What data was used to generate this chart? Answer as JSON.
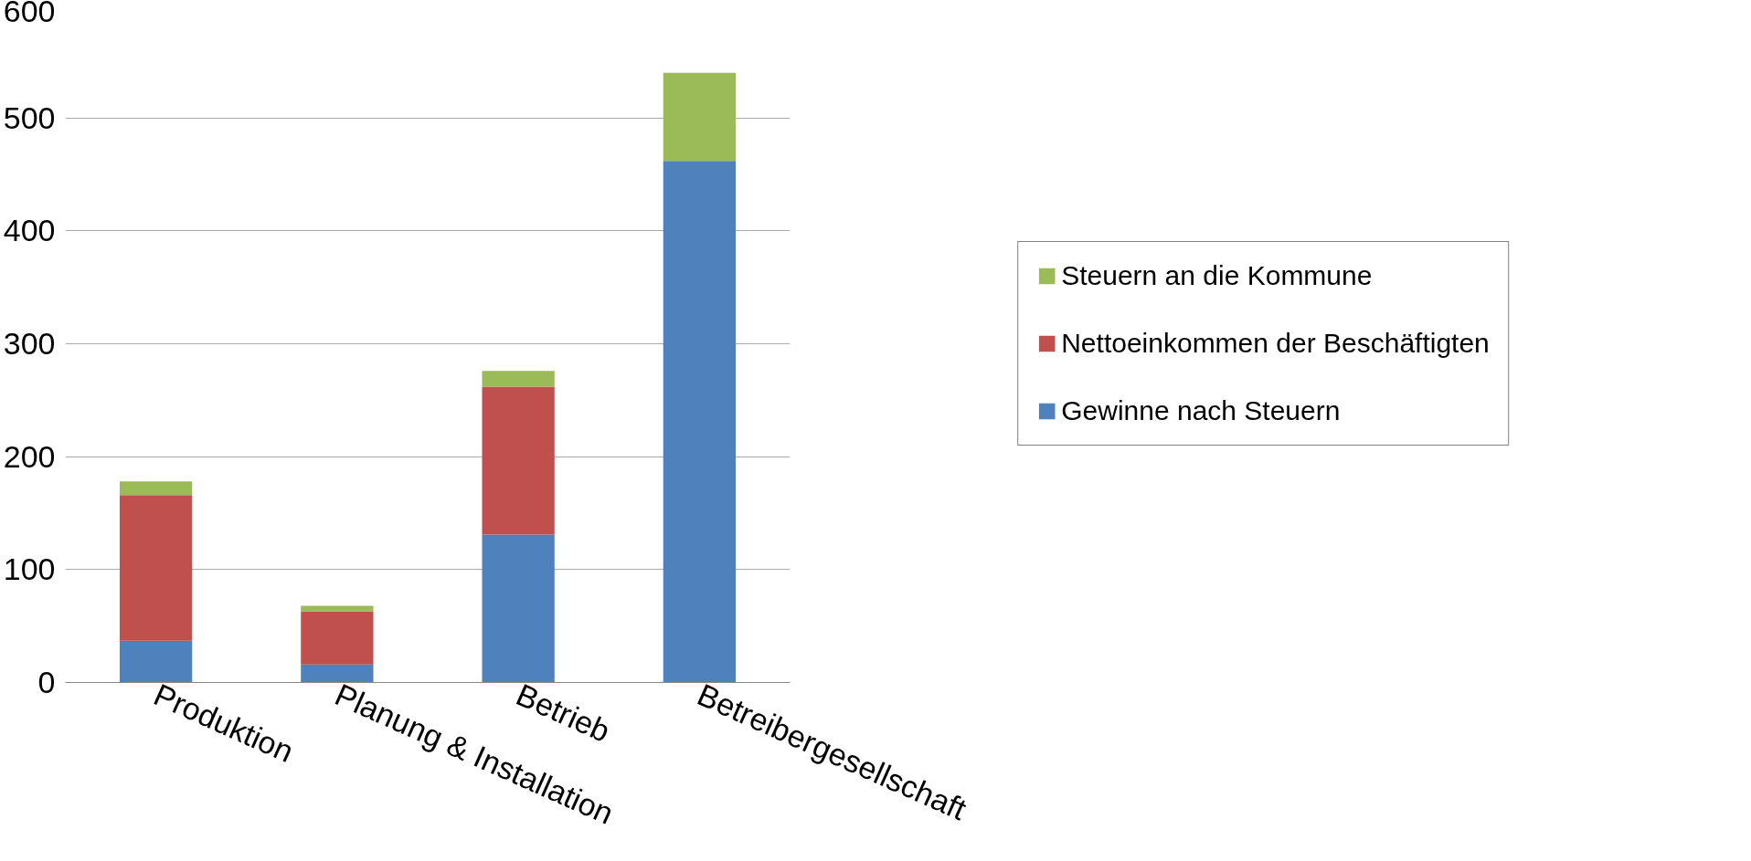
{
  "chart_data": {
    "type": "bar",
    "stacked": true,
    "categories": [
      "Produktion",
      "Planung & Installation",
      "Betrieb",
      "Betreibergesellschaft"
    ],
    "series": [
      {
        "name": "Gewinne nach Steuern",
        "color": "#4f81bd",
        "values": [
          37,
          16,
          131,
          462
        ]
      },
      {
        "name": "Nettoeinkommen der Beschäftigten",
        "color": "#c0504d",
        "values": [
          129,
          47,
          131,
          0
        ]
      },
      {
        "name": "Steuern an die Kommune",
        "color": "#9bbb59",
        "values": [
          12,
          5,
          14,
          78
        ]
      }
    ],
    "ylim": [
      0,
      600
    ],
    "yticks": [
      0,
      100,
      200,
      300,
      400,
      500,
      600
    ],
    "grid": "y",
    "legend": "right"
  }
}
